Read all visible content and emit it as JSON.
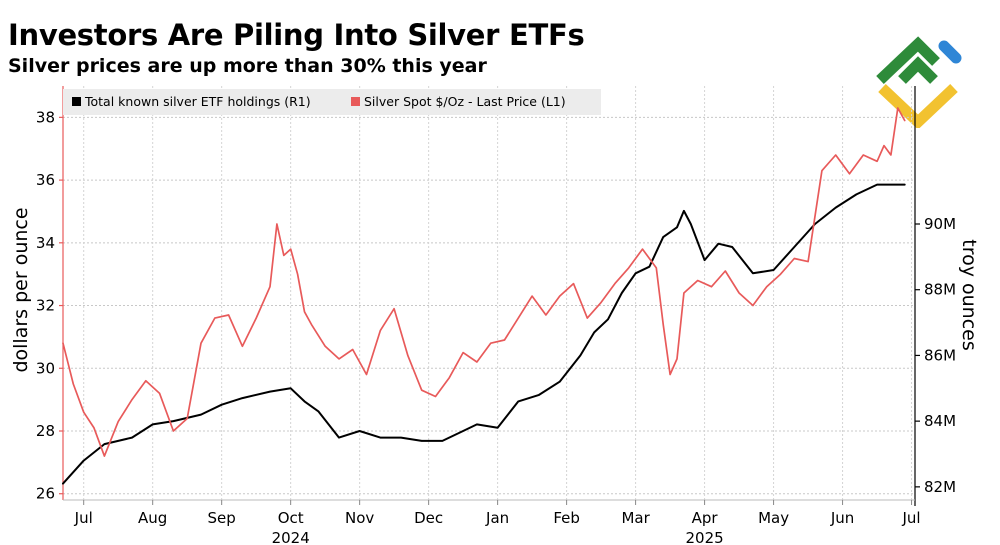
{
  "header": {
    "title": "Investors Are Piling Into Silver ETFs",
    "subtitle": "Silver prices are up more than 30% this year"
  },
  "logo": {
    "name": "brand-logo",
    "colors": [
      "#2e8b3a",
      "#f2c230",
      "#2f86d6"
    ]
  },
  "chart_data": {
    "type": "line",
    "title": "Investors Are Piling Into Silver ETFs",
    "subtitle": "Silver prices are up more than 30% this year",
    "ylabel_left": "dollars per ounce",
    "ylabel_right": "troy ounces",
    "ylim_left": [
      25.8,
      39
    ],
    "ylim_right": [
      81.6,
      94.2
    ],
    "left_ticks": [
      "26",
      "28",
      "30",
      "32",
      "34",
      "36",
      "38"
    ],
    "left_tick_values": [
      26,
      28,
      30,
      32,
      34,
      36,
      38
    ],
    "right_ticks": [
      "82M",
      "84M",
      "86M",
      "88M",
      "90M"
    ],
    "right_tick_values": [
      82,
      84,
      86,
      88,
      90
    ],
    "months": [
      "Jul",
      "Aug",
      "Sep",
      "Oct",
      "Nov",
      "Dec",
      "Jan",
      "Feb",
      "Mar",
      "Apr",
      "May",
      "Jun",
      "Jul"
    ],
    "years": [
      {
        "label": "2024",
        "month_index": 3
      },
      {
        "label": "2025",
        "month_index": 9
      }
    ],
    "grid": true,
    "legend_position": "top-left",
    "series": [
      {
        "name": "Total known silver ETF holdings (R1)",
        "axis": "right",
        "color": "#000000",
        "x": [
          0,
          0.3,
          0.6,
          1.0,
          1.3,
          1.6,
          2.0,
          2.3,
          2.6,
          3.0,
          3.3,
          3.5,
          3.7,
          4.0,
          4.3,
          4.6,
          4.9,
          5.2,
          5.5,
          5.8,
          6.0,
          6.3,
          6.6,
          6.9,
          7.2,
          7.5,
          7.7,
          7.9,
          8.1,
          8.3,
          8.5,
          8.7,
          8.9,
          9.0,
          9.1,
          9.3,
          9.5,
          9.7,
          10.0,
          10.3,
          10.6,
          10.9,
          11.2,
          11.5,
          11.8,
          12.1,
          12.2
        ],
        "values": [
          82.1,
          82.8,
          83.3,
          83.5,
          83.9,
          84.0,
          84.2,
          84.5,
          84.7,
          84.9,
          85.0,
          84.6,
          84.3,
          83.5,
          83.7,
          83.5,
          83.5,
          83.4,
          83.4,
          83.7,
          83.9,
          83.8,
          84.6,
          84.8,
          85.2,
          86.0,
          86.7,
          87.1,
          87.9,
          88.5,
          88.7,
          89.6,
          89.9,
          90.4,
          90.0,
          88.9,
          89.4,
          89.3,
          88.5,
          88.6,
          89.3,
          90.0,
          90.5,
          90.9,
          91.2,
          91.2,
          91.2
        ]
      },
      {
        "name": "Silver Spot $/Oz - Last Price (L1)",
        "axis": "left",
        "color": "#e85a5a",
        "x": [
          0,
          0.15,
          0.3,
          0.45,
          0.6,
          0.8,
          1.0,
          1.2,
          1.4,
          1.6,
          1.8,
          2.0,
          2.2,
          2.4,
          2.6,
          2.8,
          3.0,
          3.1,
          3.2,
          3.3,
          3.4,
          3.5,
          3.6,
          3.8,
          4.0,
          4.2,
          4.4,
          4.6,
          4.8,
          5.0,
          5.2,
          5.4,
          5.6,
          5.8,
          6.0,
          6.2,
          6.4,
          6.6,
          6.8,
          7.0,
          7.2,
          7.4,
          7.6,
          7.8,
          8.0,
          8.2,
          8.4,
          8.6,
          8.7,
          8.8,
          8.9,
          9.0,
          9.2,
          9.4,
          9.6,
          9.8,
          10.0,
          10.2,
          10.4,
          10.6,
          10.8,
          11.0,
          11.2,
          11.4,
          11.6,
          11.8,
          11.9,
          12.0,
          12.1,
          12.2
        ],
        "values": [
          30.8,
          29.5,
          28.6,
          28.1,
          27.2,
          28.3,
          29.0,
          29.6,
          29.2,
          28.0,
          28.4,
          30.8,
          31.6,
          31.7,
          30.7,
          31.6,
          32.6,
          34.6,
          33.6,
          33.8,
          33.0,
          31.8,
          31.4,
          30.7,
          30.3,
          30.6,
          29.8,
          31.2,
          31.9,
          30.4,
          29.3,
          29.1,
          29.7,
          30.5,
          30.2,
          30.8,
          30.9,
          31.6,
          32.3,
          31.7,
          32.3,
          32.7,
          31.6,
          32.1,
          32.7,
          33.2,
          33.8,
          33.2,
          31.4,
          29.8,
          30.3,
          32.4,
          32.8,
          32.6,
          33.1,
          32.4,
          32.0,
          32.6,
          33.0,
          33.5,
          33.4,
          36.3,
          36.8,
          36.2,
          36.8,
          36.6,
          37.1,
          36.8,
          38.3,
          37.9
        ]
      }
    ]
  }
}
